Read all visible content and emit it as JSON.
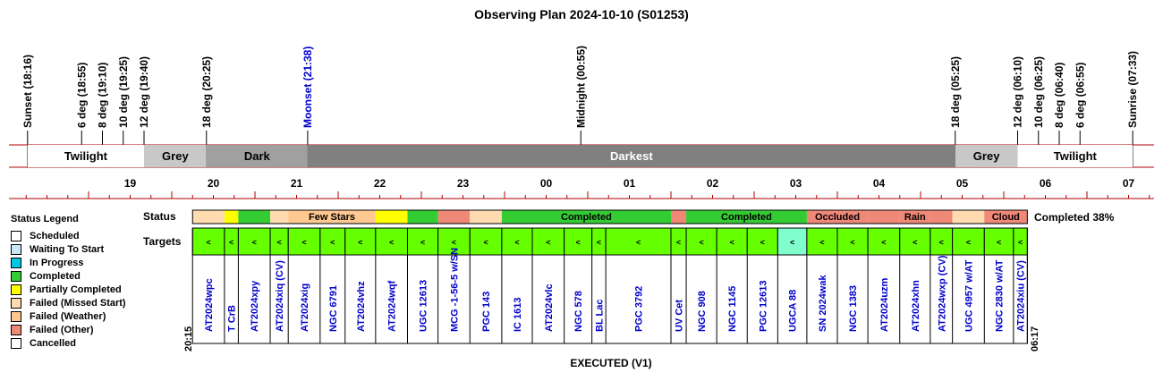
{
  "chart_data": {
    "type": "timeline",
    "title": "Observing Plan 2024-10-10 (S01253)",
    "x_axis": {
      "start": "18:16",
      "end": "07:33",
      "hour_labels": [
        "19",
        "20",
        "21",
        "22",
        "23",
        "00",
        "01",
        "02",
        "03",
        "04",
        "05",
        "06",
        "07"
      ]
    },
    "events": [
      {
        "label": "Sunset (18:16)",
        "time": "18:16",
        "color": "#000000"
      },
      {
        "label": "6 deg (18:55)",
        "time": "18:55",
        "color": "#000000"
      },
      {
        "label": "8 deg (19:10)",
        "time": "19:10",
        "color": "#000000"
      },
      {
        "label": "10 deg (19:25)",
        "time": "19:25",
        "color": "#000000"
      },
      {
        "label": "12 deg (19:40)",
        "time": "19:40",
        "color": "#000000"
      },
      {
        "label": "18 deg (20:25)",
        "time": "20:25",
        "color": "#000000"
      },
      {
        "label": "Moonset (21:38)",
        "time": "21:38",
        "color": "#0000cc"
      },
      {
        "label": "Midnight (00:55)",
        "time": "00:55",
        "color": "#000000"
      },
      {
        "label": "18 deg (05:25)",
        "time": "05:25",
        "color": "#000000"
      },
      {
        "label": "12 deg (06:10)",
        "time": "06:10",
        "color": "#000000"
      },
      {
        "label": "10 deg (06:25)",
        "time": "06:25",
        "color": "#000000"
      },
      {
        "label": "8 deg (06:40)",
        "time": "06:40",
        "color": "#000000"
      },
      {
        "label": "6 deg (06:55)",
        "time": "06:55",
        "color": "#000000"
      },
      {
        "label": "Sunrise (07:33)",
        "time": "07:33",
        "color": "#000000"
      }
    ],
    "sky_phases": [
      {
        "label": "Twilight",
        "start": "18:16",
        "end": "19:40",
        "color": "#ffffff"
      },
      {
        "label": "Grey",
        "start": "19:40",
        "end": "20:25",
        "color": "#c8c8c8"
      },
      {
        "label": "Dark",
        "start": "20:25",
        "end": "21:38",
        "color": "#a0a0a0"
      },
      {
        "label": "Darkest",
        "start": "21:38",
        "end": "05:25",
        "color": "#808080"
      },
      {
        "label": "Grey",
        "start": "05:25",
        "end": "06:10",
        "color": "#c8c8c8"
      },
      {
        "label": "Twilight",
        "start": "06:10",
        "end": "07:33",
        "color": "#ffffff"
      }
    ],
    "status_label": "Status",
    "targets_label": "Targets",
    "status_segments": [
      {
        "status": "Failed (Missed Start)",
        "start": "20:15",
        "end": "20:38",
        "label": ""
      },
      {
        "status": "Partially Completed",
        "start": "20:38",
        "end": "20:48",
        "label": ""
      },
      {
        "status": "Completed",
        "start": "20:48",
        "end": "21:11",
        "label": ""
      },
      {
        "status": "Failed (Missed Start)",
        "start": "21:11",
        "end": "21:24",
        "label": ""
      },
      {
        "status": "Failed (Weather)",
        "start": "21:24",
        "end": "22:27",
        "label": "Few Stars"
      },
      {
        "status": "Partially Completed",
        "start": "22:27",
        "end": "22:50",
        "label": ""
      },
      {
        "status": "Completed",
        "start": "22:50",
        "end": "23:12",
        "label": ""
      },
      {
        "status": "Failed (Other)",
        "start": "23:12",
        "end": "23:35",
        "label": ""
      },
      {
        "status": "Failed (Missed Start)",
        "start": "23:35",
        "end": "23:58",
        "label": ""
      },
      {
        "status": "Completed",
        "start": "23:58",
        "end": "02:00",
        "label": "Completed"
      },
      {
        "status": "Failed (Other)",
        "start": "02:00",
        "end": "02:11",
        "label": ""
      },
      {
        "status": "Completed",
        "start": "02:11",
        "end": "03:38",
        "label": "Completed"
      },
      {
        "status": "Failed (Other)",
        "start": "03:38",
        "end": "04:22",
        "label": "Occluded"
      },
      {
        "status": "Failed (Other)",
        "start": "04:22",
        "end": "04:45",
        "label": ""
      },
      {
        "status": "Failed (Other)",
        "start": "04:45",
        "end": "05:07",
        "label": "Rain"
      },
      {
        "status": "Failed (Other)",
        "start": "05:07",
        "end": "05:23",
        "label": ""
      },
      {
        "status": "Failed (Missed Start)",
        "start": "05:23",
        "end": "05:46",
        "label": ""
      },
      {
        "status": "Failed (Other)",
        "start": "05:46",
        "end": "06:17",
        "label": "Cloud"
      }
    ],
    "status_summary": "Completed 38%",
    "targets": [
      {
        "name": "AT2024wpc",
        "start": "20:15",
        "end": "20:38",
        "color": "#66ff00"
      },
      {
        "name": "T CrB",
        "start": "20:38",
        "end": "20:48",
        "color": "#66ff00"
      },
      {
        "name": "AT2024xpy",
        "start": "20:48",
        "end": "21:11",
        "color": "#66ff00"
      },
      {
        "name": "AT2024xiq (CV)",
        "start": "21:11",
        "end": "21:24",
        "color": "#66ff00"
      },
      {
        "name": "AT2024xig",
        "start": "21:24",
        "end": "21:47",
        "color": "#66ff00"
      },
      {
        "name": "NGC 6791",
        "start": "21:47",
        "end": "22:05",
        "color": "#66ff00"
      },
      {
        "name": "AT2024vhz",
        "start": "22:05",
        "end": "22:27",
        "color": "#66ff00"
      },
      {
        "name": "AT2024wqf",
        "start": "22:27",
        "end": "22:50",
        "color": "#66ff00"
      },
      {
        "name": "UGC 12613",
        "start": "22:50",
        "end": "23:12",
        "color": "#66ff00"
      },
      {
        "name": "MCG -1-56-5 w/SN",
        "start": "23:12",
        "end": "23:35",
        "color": "#66ff00"
      },
      {
        "name": "PGC 143",
        "start": "23:35",
        "end": "23:58",
        "color": "#66ff00"
      },
      {
        "name": "IC 1613",
        "start": "23:58",
        "end": "00:20",
        "color": "#66ff00"
      },
      {
        "name": "AT2024vlc",
        "start": "00:20",
        "end": "00:43",
        "color": "#66ff00"
      },
      {
        "name": "NGC 578",
        "start": "00:43",
        "end": "01:03",
        "color": "#66ff00"
      },
      {
        "name": "BL Lac",
        "start": "01:03",
        "end": "01:13",
        "color": "#66ff00"
      },
      {
        "name": "PGC 3792",
        "start": "01:13",
        "end": "02:00",
        "color": "#66ff00"
      },
      {
        "name": "UV Cet",
        "start": "02:00",
        "end": "02:11",
        "color": "#66ff00"
      },
      {
        "name": "NGC 908",
        "start": "02:11",
        "end": "02:33",
        "color": "#66ff00"
      },
      {
        "name": "NGC 1145",
        "start": "02:33",
        "end": "02:55",
        "color": "#66ff00"
      },
      {
        "name": "PGC 12613",
        "start": "02:55",
        "end": "03:17",
        "color": "#66ff00"
      },
      {
        "name": "UGCA 88",
        "start": "03:17",
        "end": "03:38",
        "color": "#80ffcc"
      },
      {
        "name": "SN 2024wak",
        "start": "03:38",
        "end": "04:00",
        "color": "#66ff00"
      },
      {
        "name": "NGC 1383",
        "start": "04:00",
        "end": "04:22",
        "color": "#66ff00"
      },
      {
        "name": "AT2024uzm",
        "start": "04:22",
        "end": "04:45",
        "color": "#66ff00"
      },
      {
        "name": "AT2024xhn",
        "start": "04:45",
        "end": "05:07",
        "color": "#66ff00"
      },
      {
        "name": "AT2024wxp (CV)",
        "start": "05:07",
        "end": "05:23",
        "color": "#66ff00"
      },
      {
        "name": "UGC 4957 w/AT",
        "start": "05:23",
        "end": "05:46",
        "color": "#66ff00"
      },
      {
        "name": "NGC 2830 w/AT",
        "start": "05:46",
        "end": "06:07",
        "color": "#66ff00"
      },
      {
        "name": "AT2024xiu (CV)",
        "start": "06:07",
        "end": "06:17",
        "color": "#66ff00"
      }
    ],
    "target_marker": "<",
    "plan_start_label": "20:15",
    "plan_end_label": "06:17",
    "footer": "EXECUTED (V1)"
  },
  "legend": {
    "title": "Status Legend",
    "items": [
      {
        "label": "Scheduled",
        "color": "#ffffff"
      },
      {
        "label": "Waiting To Start",
        "color": "#c8e8f8"
      },
      {
        "label": "In Progress",
        "color": "#00c8e0"
      },
      {
        "label": "Completed",
        "color": "#33cc33"
      },
      {
        "label": "Partially Completed",
        "color": "#ffff00"
      },
      {
        "label": "Failed (Missed Start)",
        "color": "#ffdcb0"
      },
      {
        "label": "Failed (Weather)",
        "color": "#ffc890"
      },
      {
        "label": "Failed (Other)",
        "color": "#f08878"
      },
      {
        "label": "Cancelled",
        "color": "#ffffff"
      }
    ]
  }
}
